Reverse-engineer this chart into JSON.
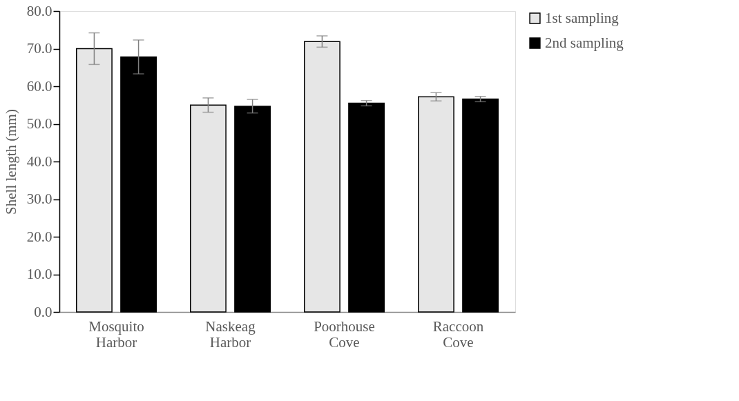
{
  "chart_data": {
    "type": "bar",
    "ylabel": "Shell length  (mm)",
    "categories": [
      "Mosquito Harbor",
      "Naskeag Harbor",
      "Poorhouse Cove",
      "Raccoon Cove"
    ],
    "series": [
      {
        "name": "1st sampling",
        "color": "#e6e6e6",
        "values": [
          70.0,
          55.0,
          71.9,
          57.2
        ],
        "errors": [
          4.2,
          1.9,
          1.5,
          1.1
        ]
      },
      {
        "name": "2nd sampling",
        "color": "#000000",
        "values": [
          67.8,
          54.7,
          55.5,
          56.6
        ],
        "errors": [
          4.5,
          1.8,
          0.7,
          0.7
        ]
      }
    ],
    "ylim": [
      0,
      80
    ],
    "yticks": [
      {
        "value": 0,
        "label": "0.0"
      },
      {
        "value": 10,
        "label": "10.0"
      },
      {
        "value": 20,
        "label": "20.0"
      },
      {
        "value": 30,
        "label": "30.0"
      },
      {
        "value": 40,
        "label": "40.0"
      },
      {
        "value": 50,
        "label": "50.0"
      },
      {
        "value": 60,
        "label": "60.0"
      },
      {
        "value": 70,
        "label": "70.0"
      },
      {
        "value": 80,
        "label": "80.0"
      }
    ],
    "grid": false,
    "legend": "right"
  }
}
